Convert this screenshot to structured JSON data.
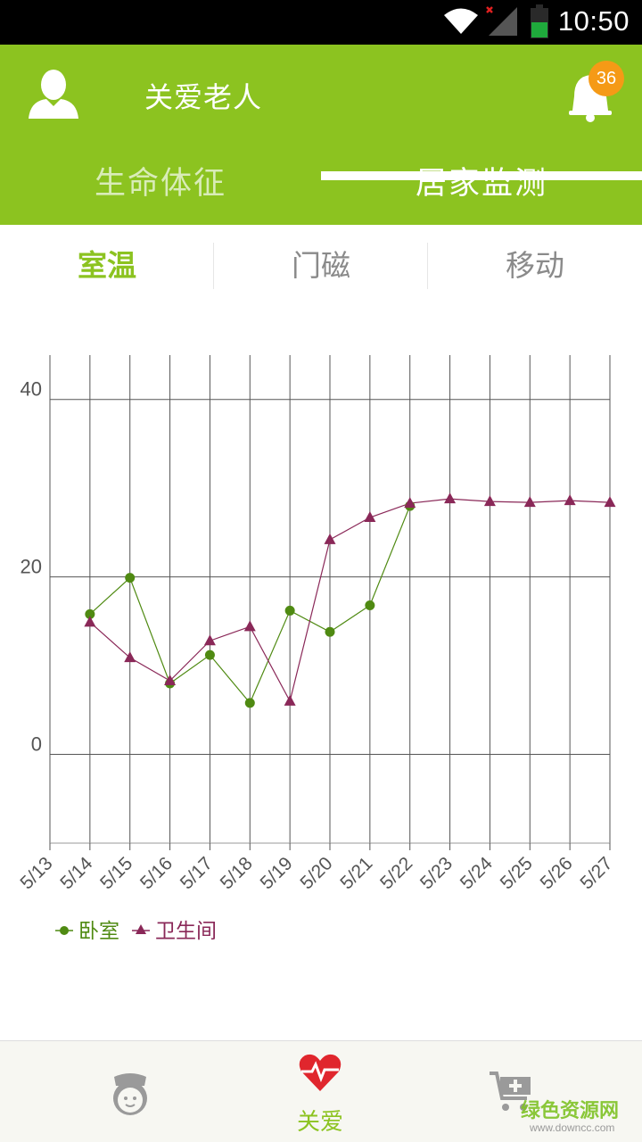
{
  "status_bar": {
    "time": "10:50",
    "icons": [
      "wifi-icon",
      "signal-icon",
      "battery-icon"
    ],
    "battery_color": "#1faa3c"
  },
  "header": {
    "title": "关爱老人",
    "notification_count": "36",
    "icons": [
      "user-avatar-icon",
      "bell-icon"
    ],
    "background_color": "#8cc320",
    "badge_color": "#f59a16"
  },
  "tabs": [
    {
      "label": "生命体征",
      "selected": false
    },
    {
      "label": "居家监测",
      "selected": true
    }
  ],
  "subtabs": [
    {
      "label": "室温",
      "selected": true
    },
    {
      "label": "门磁",
      "selected": false
    },
    {
      "label": "移动",
      "selected": false
    }
  ],
  "chart_data": {
    "type": "line",
    "categories": [
      "5/13",
      "5/14",
      "5/15",
      "5/16",
      "5/17",
      "5/18",
      "5/19",
      "5/20",
      "5/21",
      "5/22",
      "5/23",
      "5/24",
      "5/25",
      "5/26",
      "5/27"
    ],
    "y_ticks": [
      "40",
      "20",
      "0"
    ],
    "ylim": [
      -10,
      45
    ],
    "series": [
      {
        "name": "卧室",
        "marker": "circle",
        "color": "#4f8a12",
        "values": [
          null,
          15.8,
          19.9,
          8.0,
          11.2,
          5.8,
          16.2,
          13.8,
          16.8,
          28.0,
          null,
          null,
          null,
          null,
          null
        ]
      },
      {
        "name": "卫生间",
        "marker": "triangle",
        "color": "#8a2858",
        "values": [
          null,
          14.9,
          10.9,
          8.3,
          12.8,
          14.4,
          6.0,
          24.2,
          26.7,
          28.3,
          28.8,
          28.5,
          28.4,
          28.6,
          28.4
        ]
      }
    ],
    "grid": true,
    "legend_position": "bottom-left"
  },
  "bottom_nav": {
    "items": [
      {
        "icon": "nurse-icon",
        "label": ""
      },
      {
        "icon": "heart-pulse-icon",
        "label": "关爱"
      },
      {
        "icon": "shopping-cart-icon",
        "label": ""
      }
    ],
    "watermark": "绿色资源网",
    "watermark_url": "www.downcc.com"
  }
}
